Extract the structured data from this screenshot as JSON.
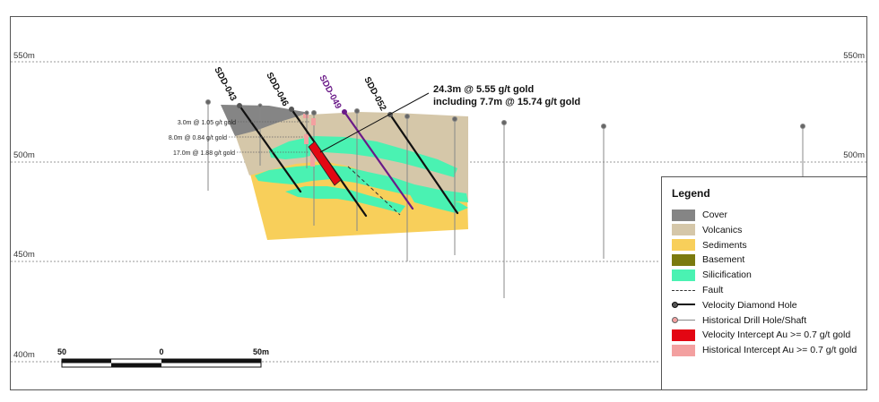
{
  "elevations": {
    "e550": "550m",
    "e500": "500m",
    "e450": "450m",
    "e400": "400m"
  },
  "holes": {
    "sdd043": "SDD-043",
    "sdd046": "SDD-046",
    "sdd049": "SDD-049",
    "sdd052": "SDD-052"
  },
  "intercepts": {
    "main_line1": "24.3m @ 5.55 g/t gold",
    "main_line2": "including 7.7m @ 15.74 g/t gold",
    "hist1": "3.0m @ 1.05 g/t gold",
    "hist2": "8.0m @ 0.84 g/t gold",
    "hist3": "17.0m @ 1.88 g/t gold"
  },
  "scale_bar": {
    "left": "50",
    "mid": "0",
    "right": "50m"
  },
  "colors": {
    "cover": "#858585",
    "volcanics": "#d5c7a9",
    "sediments": "#f8cf5a",
    "basement": "#7b7a0f",
    "silicification": "#4af2b2",
    "velocity_hole": "#111111",
    "sdd049_hole": "#6a1a88",
    "velocity_intercept": "#e30613",
    "historical_intercept": "#f3a0a0",
    "gridline": "#9a9a9a"
  },
  "legend": {
    "title": "Legend",
    "items": [
      {
        "label": "Cover",
        "kind": "swatch",
        "color": "#858585"
      },
      {
        "label": "Volcanics",
        "kind": "swatch",
        "color": "#d5c7a9"
      },
      {
        "label": "Sediments",
        "kind": "swatch",
        "color": "#f8cf5a"
      },
      {
        "label": "Basement",
        "kind": "swatch",
        "color": "#7b7a0f"
      },
      {
        "label": "Silicification",
        "kind": "swatch",
        "color": "#4af2b2"
      },
      {
        "label": "Fault",
        "kind": "dashed",
        "color": "#333333"
      },
      {
        "label": "Velocity Diamond Hole",
        "kind": "hole",
        "color": "#111111"
      },
      {
        "label": "Historical Drill Hole/Shaft",
        "kind": "historical",
        "color": "#888888"
      },
      {
        "label": "Velocity Intercept Au >= 0.7 g/t gold",
        "kind": "swatch",
        "color": "#e30613"
      },
      {
        "label": "Historical Intercept Au >= 0.7 g/t gold",
        "kind": "swatch",
        "color": "#f3a0a0"
      }
    ]
  }
}
